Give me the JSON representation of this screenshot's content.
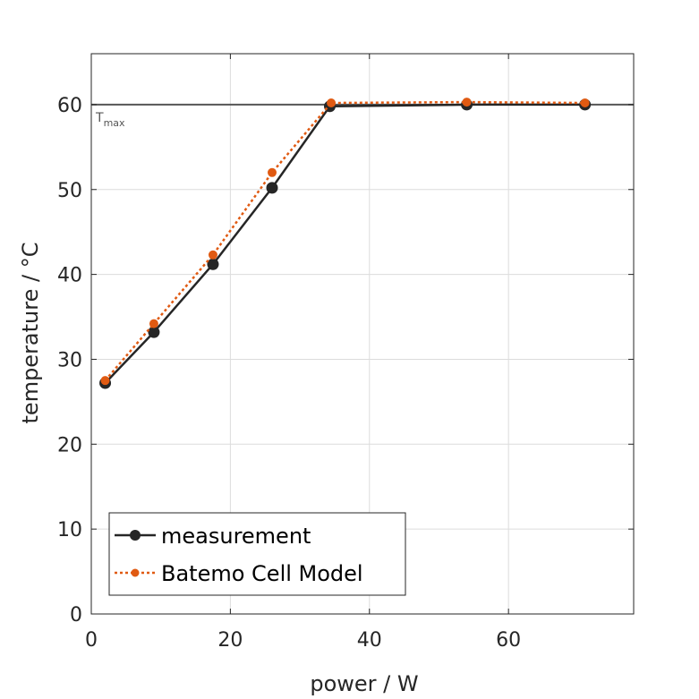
{
  "chart_data": {
    "type": "line",
    "xlabel": "power / W",
    "ylabel": "temperature / °C",
    "xlim": [
      0,
      78
    ],
    "ylim": [
      0,
      66
    ],
    "xticks": [
      0,
      20,
      40,
      60
    ],
    "yticks": [
      0,
      10,
      20,
      30,
      40,
      50,
      60
    ],
    "grid": true,
    "legend_position": "bottom-left",
    "reference_line": {
      "y": 60,
      "label": "T",
      "label_sub": "max",
      "color": "#555555"
    },
    "series": [
      {
        "name": "measurement",
        "color": "#262626",
        "line_style": "solid",
        "marker": "circle",
        "x": [
          2,
          9,
          17.5,
          26,
          34.3,
          54,
          71
        ],
        "y": [
          27.2,
          33.2,
          41.2,
          50.2,
          59.8,
          60.0,
          60.0
        ]
      },
      {
        "name": "Batemo Cell Model",
        "color": "#E05A12",
        "line_style": "dotted",
        "marker": "circle",
        "x": [
          2,
          9,
          17.5,
          26,
          34.5,
          54,
          71
        ],
        "y": [
          27.5,
          34.2,
          42.3,
          52.0,
          60.2,
          60.3,
          60.2
        ]
      }
    ]
  }
}
